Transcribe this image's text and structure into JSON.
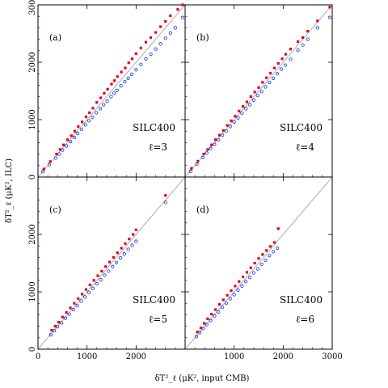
{
  "figure": {
    "ylabel": "δT²_ℓ (μK², ILC)",
    "xlabel": "δT²_ℓ (μK², input CMB)"
  },
  "colors": {
    "series_red": "#e8001a",
    "series_blue": "#1030e0",
    "diagonal": "#9a9a9a"
  },
  "axis": {
    "x_ticks": [
      0,
      1000,
      2000,
      3000
    ],
    "x_tick_labels": [
      "0",
      "1000",
      "2000",
      "3000"
    ],
    "y_ticks": [
      0,
      1000,
      2000,
      3000
    ],
    "y_tick_labels": [
      "0",
      "1000",
      "2000",
      "3000"
    ]
  },
  "chart_data": [
    {
      "type": "scatter",
      "panel": "(a)",
      "label": "SILC400",
      "ell": "ℓ=3",
      "xlim": [
        0,
        3000
      ],
      "ylim": [
        0,
        3000
      ],
      "grid": false,
      "series": [
        {
          "color": "red",
          "x": [
            120,
            250,
            380,
            450,
            520,
            600,
            680,
            750,
            820,
            900,
            980,
            1050,
            1120,
            1200,
            1280,
            1350,
            1420,
            1500,
            1560,
            1620,
            1700,
            1780,
            1850,
            1920,
            2000,
            2100,
            2200,
            2300,
            2400,
            2500,
            2600,
            2700,
            2850,
            2950
          ],
          "y": [
            140,
            270,
            400,
            480,
            560,
            650,
            720,
            800,
            880,
            960,
            1050,
            1120,
            1200,
            1300,
            1380,
            1460,
            1530,
            1620,
            1680,
            1750,
            1830,
            1900,
            1990,
            2060,
            2150,
            2250,
            2350,
            2430,
            2520,
            2620,
            2710,
            2810,
            2920,
            3000
          ]
        },
        {
          "color": "blue",
          "x": [
            100,
            230,
            360,
            430,
            500,
            580,
            660,
            740,
            810,
            890,
            970,
            1040,
            1110,
            1190,
            1270,
            1340,
            1410,
            1490,
            1550,
            1610,
            1690,
            1770,
            1840,
            1910,
            2000,
            2100,
            2200,
            2300,
            2400,
            2500,
            2600,
            2700,
            2800,
            2950
          ],
          "y": [
            95,
            215,
            330,
            400,
            470,
            540,
            620,
            690,
            760,
            830,
            910,
            980,
            1040,
            1120,
            1190,
            1260,
            1320,
            1400,
            1460,
            1510,
            1590,
            1660,
            1720,
            1790,
            1870,
            1960,
            2060,
            2140,
            2230,
            2320,
            2420,
            2510,
            2600,
            2780
          ]
        }
      ]
    },
    {
      "type": "scatter",
      "panel": "(b)",
      "label": "SILC400",
      "ell": "ℓ=4",
      "xlim": [
        0,
        3000
      ],
      "ylim": [
        0,
        3000
      ],
      "grid": false,
      "series": [
        {
          "color": "red",
          "x": [
            130,
            260,
            380,
            460,
            540,
            620,
            700,
            780,
            860,
            940,
            1020,
            1100,
            1180,
            1260,
            1340,
            1420,
            1500,
            1580,
            1660,
            1740,
            1820,
            1900,
            1980,
            2050,
            2150,
            2300,
            2400,
            2500,
            2700,
            2950
          ],
          "y": [
            150,
            275,
            400,
            480,
            560,
            650,
            730,
            810,
            900,
            980,
            1060,
            1150,
            1230,
            1310,
            1400,
            1480,
            1560,
            1650,
            1730,
            1810,
            1900,
            1980,
            2060,
            2140,
            2230,
            2360,
            2430,
            2540,
            2720,
            2960
          ]
        },
        {
          "color": "blue",
          "x": [
            110,
            240,
            360,
            440,
            520,
            600,
            680,
            760,
            840,
            920,
            1000,
            1080,
            1160,
            1240,
            1320,
            1400,
            1480,
            1560,
            1640,
            1720,
            1800,
            1880,
            1960,
            2040,
            2150,
            2300,
            2400,
            2500,
            2700,
            2950
          ],
          "y": [
            100,
            225,
            340,
            420,
            500,
            570,
            650,
            730,
            800,
            880,
            960,
            1030,
            1110,
            1190,
            1260,
            1340,
            1420,
            1490,
            1570,
            1650,
            1720,
            1800,
            1880,
            1950,
            2050,
            2210,
            2300,
            2400,
            2600,
            2780
          ]
        }
      ]
    },
    {
      "type": "scatter",
      "panel": "(c)",
      "label": "SILC400",
      "ell": "ℓ=5",
      "xlim": [
        0,
        3000
      ],
      "ylim": [
        0,
        3000
      ],
      "grid": false,
      "series": [
        {
          "color": "red",
          "x": [
            280,
            350,
            420,
            500,
            580,
            660,
            740,
            820,
            900,
            980,
            1060,
            1140,
            1220,
            1300,
            1380,
            1460,
            1540,
            1620,
            1700,
            1780,
            1860,
            1940,
            2000,
            2600
          ],
          "y": [
            330,
            400,
            470,
            560,
            640,
            720,
            800,
            880,
            960,
            1040,
            1120,
            1200,
            1280,
            1360,
            1440,
            1520,
            1600,
            1680,
            1760,
            1840,
            1920,
            2000,
            2080,
            2680
          ]
        },
        {
          "color": "blue",
          "x": [
            260,
            330,
            400,
            480,
            560,
            640,
            720,
            800,
            880,
            960,
            1040,
            1120,
            1200,
            1280,
            1360,
            1440,
            1520,
            1600,
            1680,
            1760,
            1840,
            1920,
            2000,
            2600
          ],
          "y": [
            250,
            320,
            390,
            460,
            540,
            610,
            690,
            760,
            840,
            910,
            990,
            1060,
            1140,
            1210,
            1290,
            1360,
            1440,
            1510,
            1590,
            1660,
            1740,
            1810,
            1880,
            2560
          ]
        }
      ]
    },
    {
      "type": "scatter",
      "panel": "(d)",
      "label": "SILC400",
      "ell": "ℓ=6",
      "xlim": [
        0,
        3000
      ],
      "ylim": [
        0,
        3000
      ],
      "grid": false,
      "series": [
        {
          "color": "red",
          "x": [
            250,
            320,
            390,
            460,
            540,
            620,
            700,
            780,
            860,
            940,
            1020,
            1100,
            1180,
            1260,
            1340,
            1420,
            1500,
            1580,
            1660,
            1740,
            1820,
            1900
          ],
          "y": [
            300,
            370,
            450,
            530,
            610,
            690,
            780,
            860,
            940,
            1020,
            1100,
            1180,
            1260,
            1340,
            1420,
            1500,
            1580,
            1650,
            1720,
            1790,
            1860,
            2100
          ]
        },
        {
          "color": "blue",
          "x": [
            230,
            300,
            370,
            440,
            520,
            600,
            680,
            760,
            840,
            920,
            1000,
            1080,
            1160,
            1240,
            1320,
            1400,
            1480,
            1560,
            1640,
            1720,
            1800,
            1880
          ],
          "y": [
            220,
            290,
            360,
            430,
            500,
            580,
            650,
            730,
            800,
            880,
            950,
            1030,
            1100,
            1180,
            1250,
            1330,
            1400,
            1480,
            1550,
            1630,
            1700,
            1760
          ]
        }
      ]
    }
  ]
}
